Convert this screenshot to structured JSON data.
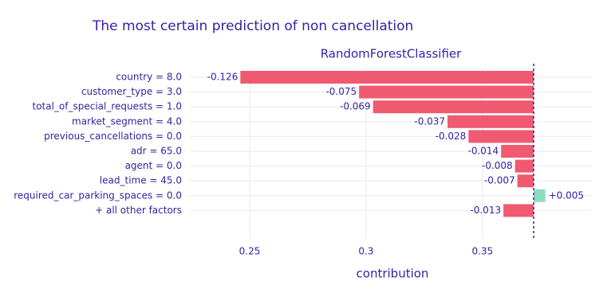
{
  "chart_data": {
    "type": "breakdown",
    "title": "The most certain prediction of non cancellation",
    "subtitle": "RandomForestClassifier",
    "x_label": "contribution",
    "categories": [
      "country = 8.0",
      "customer_type = 3.0",
      "total_of_special_requests = 1.0",
      "market_segment = 4.0",
      "previous_cancellations = 0.0",
      "adr = 65.0",
      "agent = 0.0",
      "lead_time = 45.0",
      "required_car_parking_spaces = 0.0",
      "+ all other factors"
    ],
    "values": [
      -0.126,
      -0.075,
      -0.069,
      -0.037,
      -0.028,
      -0.014,
      -0.008,
      -0.007,
      0.005,
      -0.013
    ],
    "value_labels": [
      "-0.126",
      "-0.075",
      "-0.069",
      "-0.037",
      "-0.028",
      "-0.014",
      "-0.008",
      "-0.007",
      "+0.005",
      "-0.013"
    ],
    "baseline": 0.372,
    "negative_color": "#f05a71",
    "positive_color": "#8bdcbe",
    "xlim": [
      0.2243,
      0.397
    ],
    "xticks": [
      0.25,
      0.3,
      0.35
    ],
    "grid": true
  }
}
